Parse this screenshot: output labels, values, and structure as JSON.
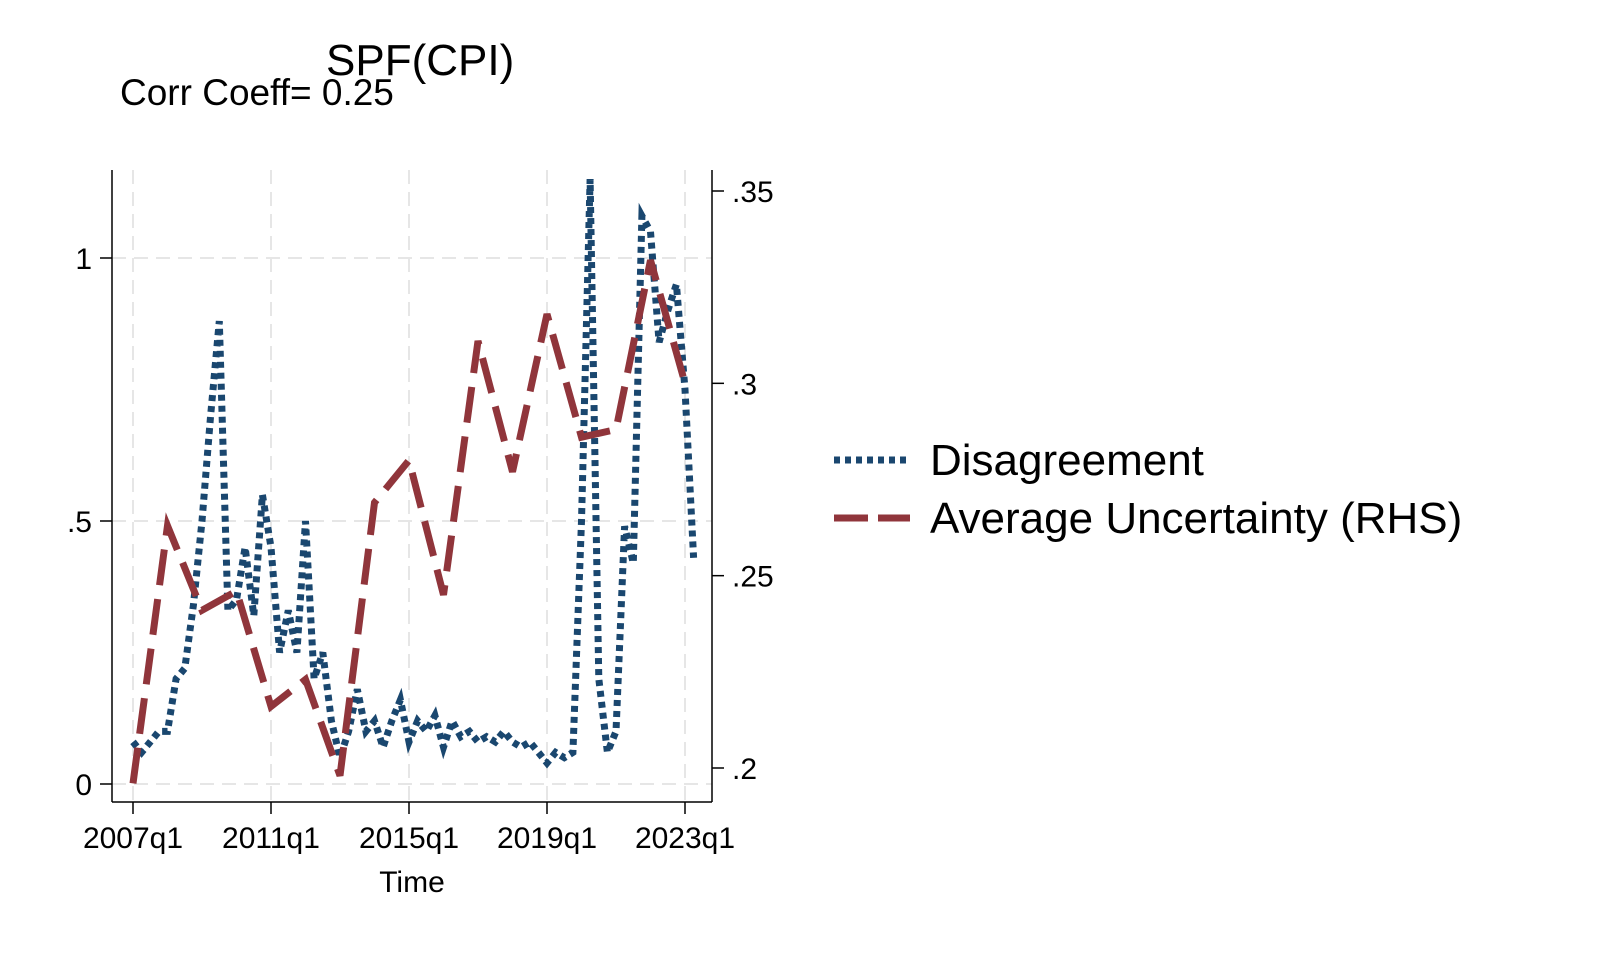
{
  "chart_data": {
    "type": "line",
    "title": "SPF(CPI)",
    "subtitle": "Corr Coeff= 0.25",
    "xlabel": "Time",
    "x_ticks": [
      "2007q1",
      "2011q1",
      "2015q1",
      "2019q1",
      "2023q1"
    ],
    "y_left_ticks": [
      "0",
      ".5",
      "1"
    ],
    "y_left_range": [
      0,
      1.15
    ],
    "y_right_ticks": [
      ".2",
      ".25",
      ".3",
      ".35"
    ],
    "y_right_range": [
      0.195,
      0.35
    ],
    "grid": true,
    "legend_position": "right",
    "series": [
      {
        "name": "Disagreement",
        "axis": "left",
        "color": "#1a476f",
        "style": "dotted",
        "points": [
          [
            2007.0,
            0.08
          ],
          [
            2007.25,
            0.06
          ],
          [
            2007.5,
            0.08
          ],
          [
            2007.75,
            0.1
          ],
          [
            2008.0,
            0.1
          ],
          [
            2008.25,
            0.2
          ],
          [
            2008.5,
            0.22
          ],
          [
            2008.75,
            0.34
          ],
          [
            2009.0,
            0.5
          ],
          [
            2009.25,
            0.7
          ],
          [
            2009.5,
            0.88
          ],
          [
            2009.75,
            0.33
          ],
          [
            2010.0,
            0.35
          ],
          [
            2010.25,
            0.45
          ],
          [
            2010.5,
            0.32
          ],
          [
            2010.75,
            0.55
          ],
          [
            2011.0,
            0.45
          ],
          [
            2011.25,
            0.25
          ],
          [
            2011.5,
            0.33
          ],
          [
            2011.75,
            0.25
          ],
          [
            2012.0,
            0.5
          ],
          [
            2012.25,
            0.2
          ],
          [
            2012.5,
            0.25
          ],
          [
            2012.75,
            0.12
          ],
          [
            2013.0,
            0.05
          ],
          [
            2013.25,
            0.1
          ],
          [
            2013.5,
            0.18
          ],
          [
            2013.75,
            0.1
          ],
          [
            2014.0,
            0.12
          ],
          [
            2014.25,
            0.07
          ],
          [
            2014.5,
            0.12
          ],
          [
            2014.75,
            0.16
          ],
          [
            2015.0,
            0.08
          ],
          [
            2015.25,
            0.12
          ],
          [
            2015.5,
            0.1
          ],
          [
            2015.75,
            0.13
          ],
          [
            2016.0,
            0.07
          ],
          [
            2016.25,
            0.12
          ],
          [
            2016.5,
            0.09
          ],
          [
            2016.75,
            0.1
          ],
          [
            2017.0,
            0.08
          ],
          [
            2017.25,
            0.09
          ],
          [
            2017.5,
            0.08
          ],
          [
            2017.75,
            0.1
          ],
          [
            2018.0,
            0.08
          ],
          [
            2018.25,
            0.07
          ],
          [
            2018.5,
            0.08
          ],
          [
            2018.75,
            0.06
          ],
          [
            2019.0,
            0.04
          ],
          [
            2019.25,
            0.06
          ],
          [
            2019.5,
            0.05
          ],
          [
            2019.75,
            0.06
          ],
          [
            2020.0,
            0.5
          ],
          [
            2020.25,
            1.15
          ],
          [
            2020.5,
            0.2
          ],
          [
            2020.75,
            0.06
          ],
          [
            2021.0,
            0.1
          ],
          [
            2021.25,
            0.49
          ],
          [
            2021.5,
            0.42
          ],
          [
            2021.75,
            1.08
          ],
          [
            2022.0,
            1.05
          ],
          [
            2022.25,
            0.84
          ],
          [
            2022.5,
            0.9
          ],
          [
            2022.75,
            0.95
          ],
          [
            2023.0,
            0.75
          ],
          [
            2023.25,
            0.43
          ]
        ]
      },
      {
        "name": "Average Uncertainty (RHS)",
        "axis": "right",
        "color": "#90353b",
        "style": "dashed",
        "points": [
          [
            2007.0,
            0.196
          ],
          [
            2008.0,
            0.263
          ],
          [
            2009.0,
            0.241
          ],
          [
            2010.0,
            0.246
          ],
          [
            2011.0,
            0.216
          ],
          [
            2012.0,
            0.223
          ],
          [
            2013.0,
            0.198
          ],
          [
            2014.0,
            0.269
          ],
          [
            2015.0,
            0.28
          ],
          [
            2016.0,
            0.245
          ],
          [
            2017.0,
            0.311
          ],
          [
            2018.0,
            0.277
          ],
          [
            2019.0,
            0.318
          ],
          [
            2020.0,
            0.286
          ],
          [
            2021.0,
            0.288
          ],
          [
            2022.0,
            0.332
          ],
          [
            2023.0,
            0.3
          ]
        ]
      }
    ]
  }
}
